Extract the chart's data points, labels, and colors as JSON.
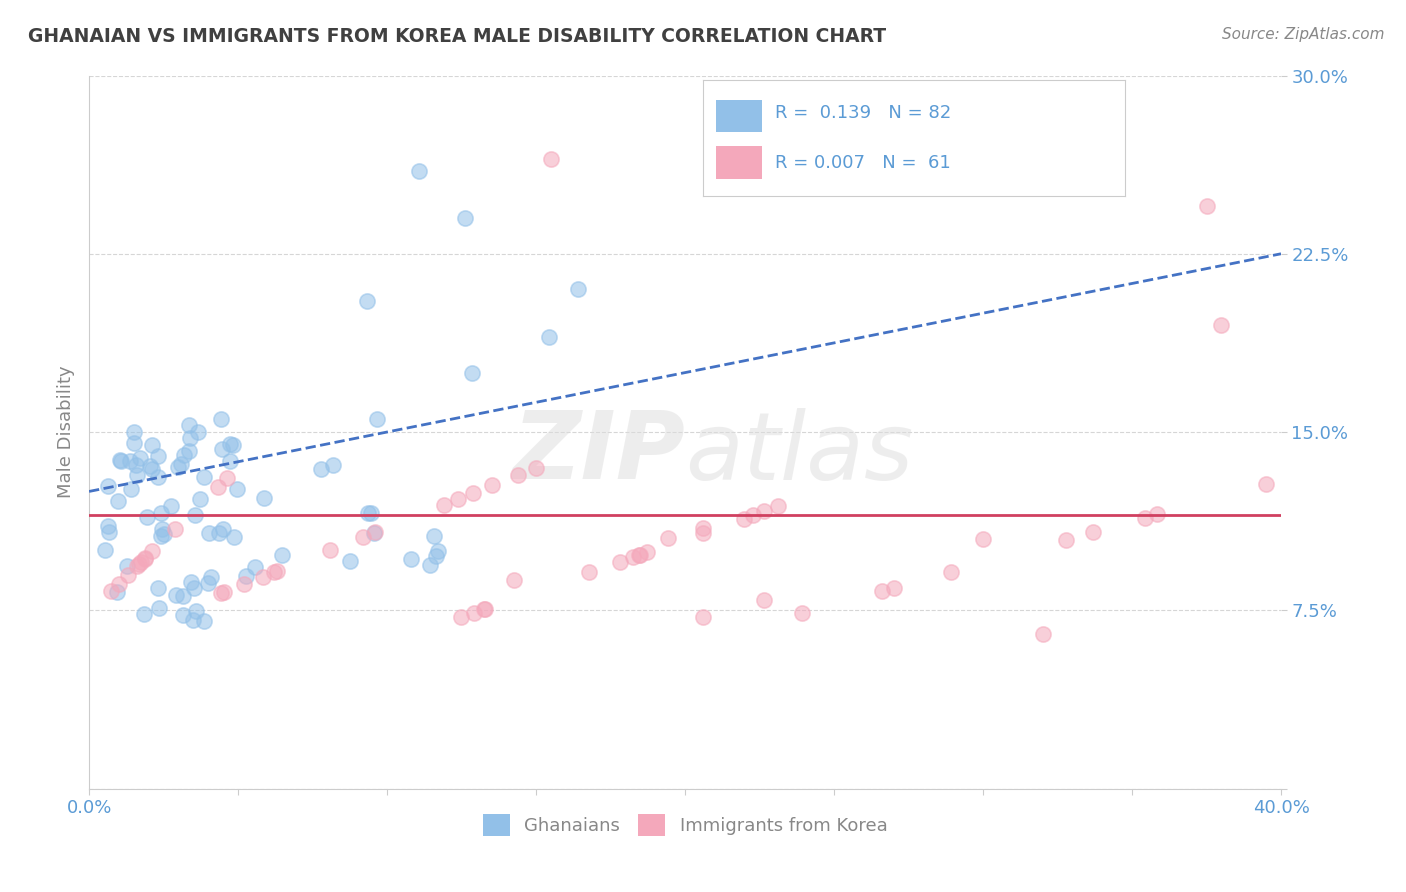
{
  "title": "GHANAIAN VS IMMIGRANTS FROM KOREA MALE DISABILITY CORRELATION CHART",
  "source": "Source: ZipAtlas.com",
  "ylabel": "Male Disability",
  "xlim": [
    0.0,
    0.4
  ],
  "ylim": [
    0.0,
    0.3
  ],
  "ytick_vals": [
    0.0,
    0.075,
    0.15,
    0.225,
    0.3
  ],
  "ytick_labels": [
    "",
    "7.5%",
    "15.0%",
    "22.5%",
    "30.0%"
  ],
  "xtick_vals": [
    0.0,
    0.05,
    0.1,
    0.15,
    0.2,
    0.25,
    0.3,
    0.35,
    0.4
  ],
  "xtick_labels": [
    "0.0%",
    "",
    "",
    "",
    "",
    "",
    "",
    "",
    "40.0%"
  ],
  "legend_r1": "R =  0.139   N = 82",
  "legend_r2": "R = 0.007   N =  61",
  "blue_color": "#92C0E8",
  "pink_color": "#F4A8BB",
  "trend_blue": "#4472C4",
  "trend_pink": "#D04060",
  "watermark": "ZIPatlas",
  "title_color": "#404040",
  "axis_label_color": "#888888",
  "tick_color": "#5B9BD5",
  "background_color": "#FFFFFF",
  "grid_color": "#CCCCCC",
  "blue_trend_start_y": 0.125,
  "blue_trend_end_y": 0.225,
  "pink_trend_y": 0.115
}
